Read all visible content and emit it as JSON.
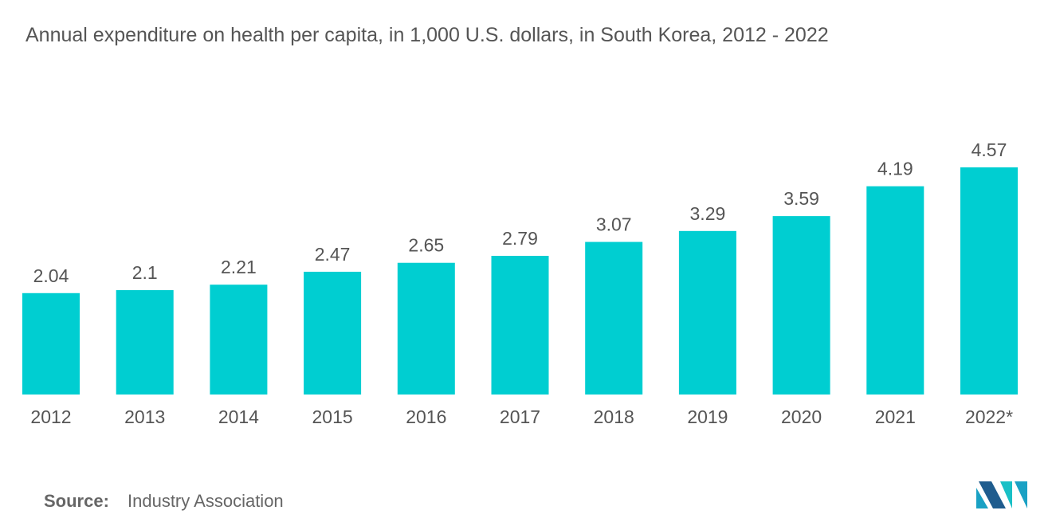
{
  "chart_data": {
    "type": "bar",
    "title": "Annual expenditure on health per capita, in 1,000 U.S. dollars, in South Korea, 2012 - 2022",
    "categories": [
      "2012",
      "2013",
      "2014",
      "2015",
      "2016",
      "2017",
      "2018",
      "2019",
      "2020",
      "2021",
      "2022*"
    ],
    "values": [
      2.04,
      2.1,
      2.21,
      2.47,
      2.65,
      2.79,
      3.07,
      3.29,
      3.59,
      4.19,
      4.57
    ],
    "color": "#00ced1"
  },
  "source": {
    "label": "Source:",
    "text": "Industry Association"
  }
}
